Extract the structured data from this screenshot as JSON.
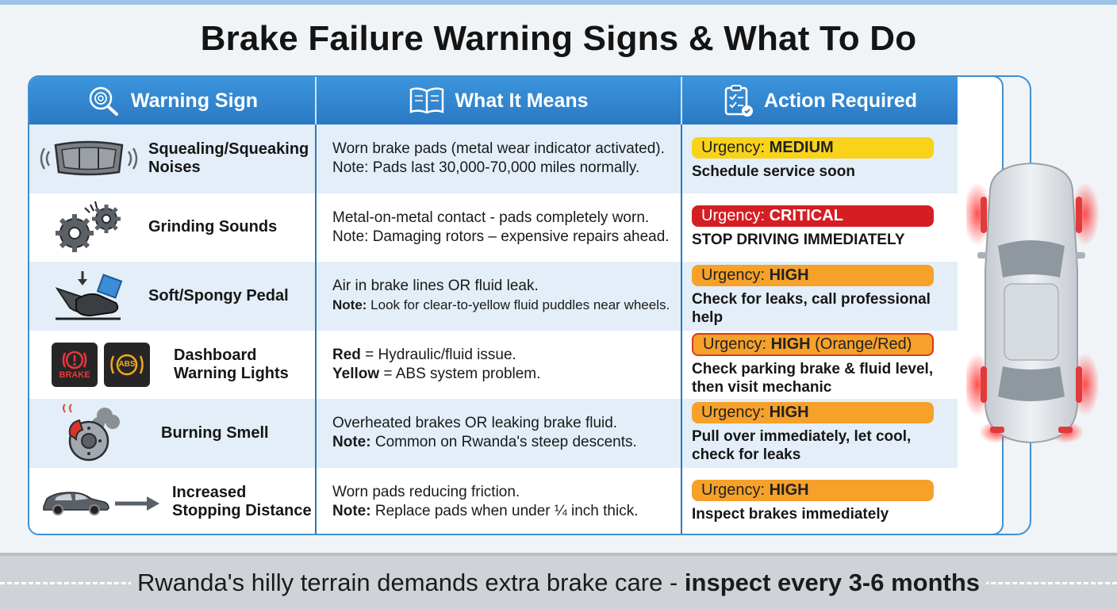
{
  "title": "Brake Failure Warning Signs & What To Do",
  "colors": {
    "header_blue": "#2a79c3",
    "row_alt": "#e3eef8",
    "urgency_medium": "#f8d31a",
    "urgency_critical": "#d41e22",
    "urgency_high": "#f6a12a"
  },
  "table": {
    "headers": [
      {
        "label": "Warning Sign",
        "icon": "magnifier-brake-icon"
      },
      {
        "label": "What It Means",
        "icon": "open-book-icon"
      },
      {
        "label": "Action Required",
        "icon": "clipboard-checklist-icon"
      }
    ],
    "rows": [
      {
        "sign": [
          "Squealing/Squeaking",
          "Noises"
        ],
        "icon": "brake-pad-sound-icon",
        "meaning": [
          "Worn brake pads (metal wear indicator activated).",
          "Note: Pads last 30,000-70,000 miles normally."
        ],
        "urgency_prefix": "Urgency: ",
        "urgency_level": "MEDIUM",
        "urgency_suffix": "",
        "action": [
          "Schedule service soon"
        ]
      },
      {
        "sign": [
          "Grinding Sounds"
        ],
        "icon": "grinding-gears-icon",
        "meaning": [
          "Metal-on-metal contact - pads completely worn.",
          "Note: Damaging rotors – expensive repairs ahead."
        ],
        "urgency_prefix": "Urgency: ",
        "urgency_level": "CRITICAL",
        "urgency_suffix": "",
        "action": [
          "STOP DRIVING IMMEDIATELY"
        ]
      },
      {
        "sign": [
          "Soft/Spongy Pedal"
        ],
        "icon": "foot-on-pedal-icon",
        "meaning_line1": "Air in brake lines OR fluid leak.",
        "meaning_note_label": "Note:",
        "meaning_note_text": " Look for clear-to-yellow fluid puddles near wheels.",
        "urgency_prefix": "Urgency: ",
        "urgency_level": "HIGH",
        "urgency_suffix": "",
        "action": [
          "Check for leaks, call professional help"
        ]
      },
      {
        "sign": [
          "Dashboard",
          "Warning Lights"
        ],
        "icon": "dashboard-warning-lights-icon",
        "brake_light_text": "BRAKE",
        "abs_light_text": "ABS",
        "meaning_red_label": "Red",
        "meaning_red_text": " = Hydraulic/fluid issue.",
        "meaning_yellow_label": "Yellow",
        "meaning_yellow_text": " = ABS system problem.",
        "urgency_prefix": "Urgency: ",
        "urgency_level": "HIGH",
        "urgency_suffix": " (Orange/Red)",
        "action": [
          "Check parking brake & fluid level,",
          "then visit mechanic"
        ]
      },
      {
        "sign": [
          "Burning Smell"
        ],
        "icon": "smoking-brake-disc-icon",
        "meaning_line1": "Overheated brakes OR leaking brake fluid.",
        "meaning_note_label": "Note:",
        "meaning_note_text": " Common on Rwanda's steep descents.",
        "urgency_prefix": "Urgency: ",
        "urgency_level": "HIGH",
        "urgency_suffix": "",
        "action": [
          "Pull over immediately, let cool,",
          "check for leaks"
        ]
      },
      {
        "sign": [
          "Increased",
          "Stopping Distance"
        ],
        "icon": "car-stopping-arrow-icon",
        "meaning_line1": "Worn pads reducing friction.",
        "meaning_note_label": "Note:",
        "meaning_note_text": " Replace pads when under ¼ inch thick.",
        "urgency_prefix": "Urgency: ",
        "urgency_level": "HIGH",
        "urgency_suffix": "",
        "action": [
          "Inspect brakes immediately"
        ]
      }
    ]
  },
  "footer": {
    "text": "Rwanda's hilly terrain demands extra brake care - ",
    "highlight": "inspect every 3-6 months"
  }
}
